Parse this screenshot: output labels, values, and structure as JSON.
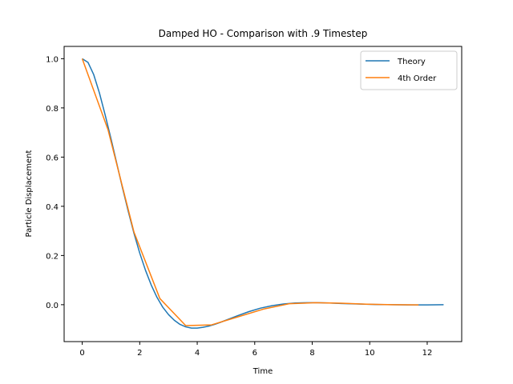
{
  "chart_data": {
    "type": "line",
    "title": "Damped HO - Comparison with .9 Timestep",
    "xlabel": "Time",
    "ylabel": "Particle Displacement",
    "xlim": [
      -0.63,
      13.2
    ],
    "ylim": [
      -0.15,
      1.05
    ],
    "xticks": [
      0,
      2,
      4,
      6,
      8,
      10,
      12
    ],
    "xtick_labels": [
      "0",
      "2",
      "4",
      "6",
      "8",
      "10",
      "12"
    ],
    "yticks": [
      0.0,
      0.2,
      0.4,
      0.6,
      0.8,
      1.0
    ],
    "ytick_labels": [
      "0.0",
      "0.2",
      "0.4",
      "0.6",
      "0.8",
      "1.0"
    ],
    "grid": false,
    "legend_position": "top-right",
    "series": [
      {
        "name": "Theory",
        "color": "#1f77b4",
        "x": [
          0,
          0.2,
          0.4,
          0.6,
          0.8,
          1.0,
          1.2,
          1.4,
          1.6,
          1.8,
          2.0,
          2.2,
          2.4,
          2.6,
          2.8,
          3.0,
          3.2,
          3.4,
          3.6,
          3.8,
          4.0,
          4.2,
          4.4,
          4.6,
          4.8,
          5.0,
          5.4,
          5.8,
          6.2,
          6.6,
          7.0,
          7.4,
          7.8,
          8.2,
          8.6,
          9.0,
          9.6,
          10.2,
          10.8,
          11.4,
          12.0,
          12.57
        ],
        "y": [
          1.0,
          0.985,
          0.935,
          0.86,
          0.77,
          0.675,
          0.575,
          0.475,
          0.38,
          0.29,
          0.21,
          0.14,
          0.08,
          0.03,
          -0.01,
          -0.04,
          -0.063,
          -0.08,
          -0.09,
          -0.095,
          -0.095,
          -0.092,
          -0.087,
          -0.08,
          -0.072,
          -0.063,
          -0.045,
          -0.028,
          -0.014,
          -0.004,
          0.003,
          0.007,
          0.008,
          0.008,
          0.007,
          0.005,
          0.003,
          0.001,
          0.0,
          -0.001,
          -0.001,
          0.0
        ]
      },
      {
        "name": "4th Order",
        "color": "#ff7f0e",
        "x": [
          0,
          0.9,
          1.8,
          2.7,
          3.6,
          4.5,
          5.4,
          6.3,
          7.2,
          8.1,
          9.0,
          9.9,
          10.8,
          11.7
        ],
        "y": [
          1.0,
          0.71,
          0.295,
          0.025,
          -0.085,
          -0.082,
          -0.05,
          -0.018,
          0.004,
          0.008,
          0.006,
          0.002,
          0.0,
          -0.001
        ]
      }
    ]
  }
}
